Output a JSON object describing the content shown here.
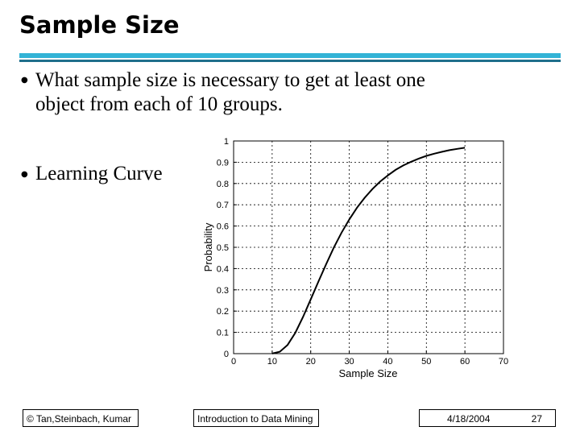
{
  "slide": {
    "title": "Sample Size",
    "bullets": [
      {
        "line1": "What  sample  size  is  necessary  to  get  at  least  one",
        "line2": "object from each of 10 groups."
      },
      {
        "line1": "Learning Curve"
      }
    ],
    "bullet_glyph": "●",
    "footer": {
      "copyright": "© Tan,Steinbach, Kumar",
      "course": "Introduction to Data Mining",
      "date": "4/18/2004",
      "page": "27"
    }
  },
  "chart_data": {
    "type": "line",
    "xlabel": "Sample Size",
    "ylabel": "Probability",
    "xlim": [
      0,
      70
    ],
    "ylim": [
      0,
      1
    ],
    "xticks": [
      0,
      10,
      20,
      30,
      40,
      50,
      60,
      70
    ],
    "yticks": [
      0,
      0.1,
      0.2,
      0.3,
      0.4,
      0.5,
      0.6,
      0.7,
      0.8,
      0.9,
      1
    ],
    "ytick_labels": [
      "0",
      "0.1",
      "0.2",
      "0.3",
      "0.4",
      "0.5",
      "0.6",
      "0.7",
      "0.8",
      "0.9",
      "1"
    ],
    "grid": true,
    "series": [
      {
        "color": "#000000",
        "x": [
          10,
          12,
          14,
          16,
          18,
          20,
          22,
          24,
          26,
          28,
          30,
          32,
          34,
          36,
          38,
          40,
          42,
          44,
          46,
          48,
          50,
          52,
          54,
          56,
          58,
          60
        ],
        "y": [
          0.0004,
          0.009,
          0.041,
          0.098,
          0.172,
          0.255,
          0.339,
          0.421,
          0.499,
          0.569,
          0.631,
          0.686,
          0.733,
          0.774,
          0.809,
          0.838,
          0.864,
          0.885,
          0.902,
          0.917,
          0.93,
          0.94,
          0.949,
          0.957,
          0.963,
          0.968
        ]
      }
    ]
  }
}
